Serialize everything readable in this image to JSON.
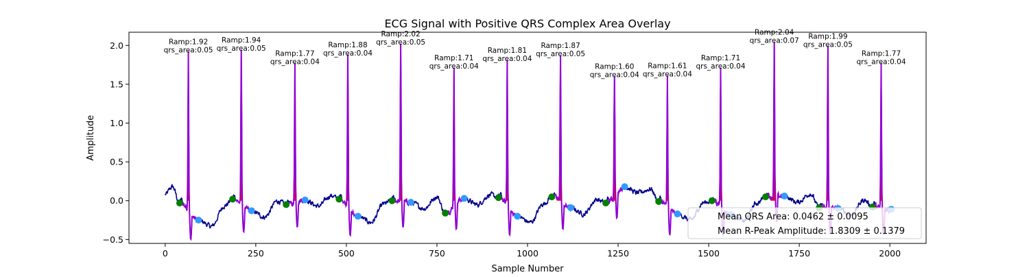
{
  "chart_data": {
    "type": "line",
    "title": "ECG Signal with Positive QRS Complex Area Overlay",
    "xlabel": "Sample Number",
    "ylabel": "Amplitude",
    "xlim": [
      -100,
      2100
    ],
    "ylim": [
      -0.55,
      2.17
    ],
    "xticks": [
      0,
      250,
      500,
      750,
      1000,
      1250,
      1500,
      1750,
      2000
    ],
    "yticks": [
      -0.5,
      0.0,
      0.5,
      1.0,
      1.5,
      2.0
    ],
    "xtick_labels": [
      "0",
      "250",
      "500",
      "750",
      "1000",
      "1250",
      "1500",
      "1750",
      "2000"
    ],
    "ytick_labels": [
      "−0.5",
      "0.0",
      "0.5",
      "1.0",
      "1.5",
      "2.0"
    ],
    "grid": false,
    "legend_position": "lower-right",
    "colors": {
      "signal": "#00008b",
      "qrs_segment": "#9400d3",
      "qrs_area_fill": "#ff0000",
      "onset_marker": "#008000",
      "offset_marker": "#3399ff",
      "axis": "#000000"
    },
    "beats": [
      {
        "r_sample": 64,
        "r_amp": 1.92,
        "qrs_area": 0.05,
        "onset_sample": 40,
        "onset_amp": -0.03,
        "offset_sample": 92,
        "offset_amp": -0.25,
        "label_ramp": "Ramp:1.92",
        "label_area": "qrs_area:0.05"
      },
      {
        "r_sample": 210,
        "r_amp": 1.94,
        "qrs_area": 0.05,
        "onset_sample": 186,
        "onset_amp": 0.02,
        "offset_sample": 238,
        "offset_amp": -0.13,
        "label_ramp": "Ramp:1.94",
        "label_area": "qrs_area:0.05"
      },
      {
        "r_sample": 358,
        "r_amp": 1.77,
        "qrs_area": 0.04,
        "onset_sample": 334,
        "onset_amp": -0.05,
        "offset_sample": 386,
        "offset_amp": 0.01,
        "label_ramp": "Ramp:1.77",
        "label_area": "qrs_area:0.04"
      },
      {
        "r_sample": 504,
        "r_amp": 1.88,
        "qrs_area": 0.04,
        "onset_sample": 480,
        "onset_amp": 0.02,
        "offset_sample": 532,
        "offset_amp": -0.2,
        "label_ramp": "Ramp:1.88",
        "label_area": "qrs_area:0.04"
      },
      {
        "r_sample": 650,
        "r_amp": 2.02,
        "qrs_area": 0.05,
        "onset_sample": 626,
        "onset_amp": 0.0,
        "offset_sample": 678,
        "offset_amp": -0.02,
        "label_ramp": "Ramp:2.02",
        "label_area": "qrs_area:0.05"
      },
      {
        "r_sample": 797,
        "r_amp": 1.71,
        "qrs_area": 0.04,
        "onset_sample": 773,
        "onset_amp": -0.16,
        "offset_sample": 825,
        "offset_amp": 0.03,
        "label_ramp": "Ramp:1.71",
        "label_area": "qrs_area:0.04"
      },
      {
        "r_sample": 944,
        "r_amp": 1.81,
        "qrs_area": 0.04,
        "onset_sample": 920,
        "onset_amp": 0.04,
        "offset_sample": 972,
        "offset_amp": -0.2,
        "label_ramp": "Ramp:1.81",
        "label_area": "qrs_area:0.04"
      },
      {
        "r_sample": 1091,
        "r_amp": 1.87,
        "qrs_area": 0.05,
        "onset_sample": 1067,
        "onset_amp": 0.05,
        "offset_sample": 1119,
        "offset_amp": -0.09,
        "label_ramp": "Ramp:1.87",
        "label_area": "qrs_area:0.05"
      },
      {
        "r_sample": 1240,
        "r_amp": 1.6,
        "qrs_area": 0.04,
        "onset_sample": 1216,
        "onset_amp": -0.03,
        "offset_sample": 1268,
        "offset_amp": 0.18,
        "label_ramp": "Ramp:1.60",
        "label_area": "qrs_area:0.04"
      },
      {
        "r_sample": 1386,
        "r_amp": 1.61,
        "qrs_area": 0.04,
        "onset_sample": 1362,
        "onset_amp": -0.01,
        "offset_sample": 1414,
        "offset_amp": -0.17,
        "label_ramp": "Ramp:1.61",
        "label_area": "qrs_area:0.04"
      },
      {
        "r_sample": 1533,
        "r_amp": 1.71,
        "qrs_area": 0.04,
        "onset_sample": 1509,
        "onset_amp": 0.0,
        "offset_sample": 1561,
        "offset_amp": -0.18,
        "label_ramp": "Ramp:1.71",
        "label_area": "qrs_area:0.04"
      },
      {
        "r_sample": 1681,
        "r_amp": 2.04,
        "qrs_area": 0.07,
        "onset_sample": 1657,
        "onset_amp": 0.05,
        "offset_sample": 1709,
        "offset_amp": 0.06,
        "label_ramp": "Ramp:2.04",
        "label_area": "qrs_area:0.07"
      },
      {
        "r_sample": 1829,
        "r_amp": 1.99,
        "qrs_area": 0.05,
        "onset_sample": 1805,
        "onset_amp": -0.09,
        "offset_sample": 1857,
        "offset_amp": -0.1,
        "label_ramp": "Ramp:1.99",
        "label_area": "qrs_area:0.05"
      },
      {
        "r_sample": 1976,
        "r_amp": 1.77,
        "qrs_area": 0.04,
        "onset_sample": 1952,
        "onset_amp": -0.08,
        "offset_sample": 2004,
        "offset_amp": -0.11,
        "label_ramp": "Ramp:1.77",
        "label_area": "qrs_area:0.04"
      }
    ],
    "legend": [
      {
        "text": "Mean QRS Area: 0.0462 ± 0.0095"
      },
      {
        "text": "Mean R-Peak Amplitude: 1.8309 ± 0.1379"
      }
    ],
    "stats": {
      "mean_qrs_area": 0.0462,
      "qrs_area_std": 0.0095,
      "mean_r_amp": 1.8309,
      "r_amp_std": 0.1379
    }
  }
}
